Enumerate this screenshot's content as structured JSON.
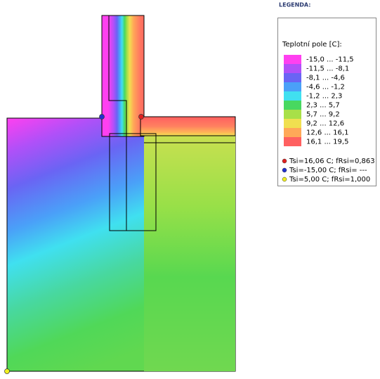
{
  "legend_heading": "LEGENDA:",
  "legend": {
    "title": "Teplotní pole [C]:",
    "ranges": [
      {
        "label": "-15,0 ... -11,5",
        "color": "#ff40f0"
      },
      {
        "label": "-11,5 ... -8,1",
        "color": "#b050f8"
      },
      {
        "label": "-8,1 ... -4,6",
        "color": "#6a64f4"
      },
      {
        "label": "-4,6 ... -1,2",
        "color": "#4aa0f8"
      },
      {
        "label": "-1,2 ... 2,3",
        "color": "#40e0f0"
      },
      {
        "label": "2,3 ... 5,7",
        "color": "#48d860"
      },
      {
        "label": "5,7 ... 9,2",
        "color": "#a8e048"
      },
      {
        "label": "9,2 ... 12,6",
        "color": "#f0e050"
      },
      {
        "label": "12,6 ... 16,1",
        "color": "#ffa858"
      },
      {
        "label": "16,1 ... 19,5",
        "color": "#ff6060"
      }
    ],
    "points": [
      {
        "label": "Tsi=16,06 C; fRsi=0,863",
        "color": "#e02020"
      },
      {
        "label": "Tsi=-15,00 C; fRsi= ---",
        "color": "#2030d0"
      },
      {
        "label": "Tsi=5,00 C; fRsi=1,000",
        "color": "#f0f020"
      }
    ]
  }
}
